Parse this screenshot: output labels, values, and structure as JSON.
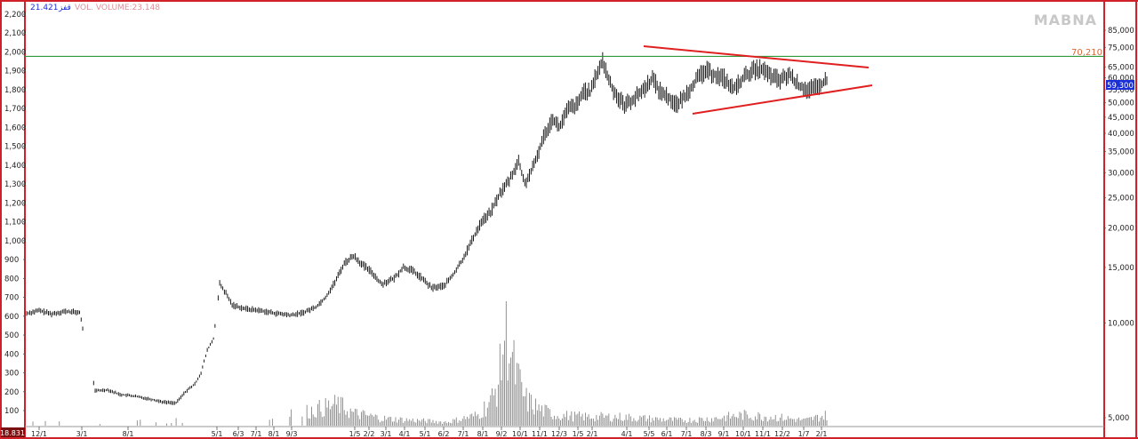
{
  "header": {
    "price_label": "21.421",
    "sym_label": "قفز",
    "volume_label": "VOL. VOLUME:23.148"
  },
  "watermark": "MABNA",
  "colors": {
    "frame": "#d0202a",
    "trendline": "#e02020",
    "resistance": "#2e9a3c",
    "price_badge": "#1a2fd6",
    "resistance_label": "#d7683a",
    "candles": "#000000",
    "volume": "#777777"
  },
  "chart_data": {
    "type": "bar",
    "title": "",
    "left_axis": {
      "ticks": [
        "100",
        "200",
        "300",
        "400",
        "500",
        "600",
        "700",
        "800",
        "900",
        "1,000",
        "1,100",
        "1,200",
        "1,300",
        "1,400",
        "1,500",
        "1,600",
        "1,700",
        "1,800",
        "1,900",
        "2,000",
        "2,100",
        "2,200"
      ],
      "bottom_badge": "18.831"
    },
    "right_axis": {
      "scale": "log",
      "ticks": [
        "85,000",
        "75,000",
        "65,000",
        "60,000",
        "55,000",
        "50,000",
        "45,000",
        "40,000",
        "35,000",
        "30,000",
        "25,000",
        "20,000",
        "15,000",
        "10,000",
        "5,000"
      ],
      "last_price_badge": "59,300"
    },
    "x_axis": {
      "ticks": [
        "12/1",
        "3/1",
        "8/1",
        "5/1",
        "6/3",
        "7/1",
        "8/1",
        "9/3",
        "1/5",
        "2/2",
        "3/1",
        "4/1",
        "5/1",
        "6/2",
        "7/1",
        "8/1",
        "9/2",
        "10/1",
        "11/1",
        "12/3",
        "1/5",
        "2/1",
        "4/1",
        "5/5",
        "6/1",
        "7/1",
        "8/3",
        "9/1",
        "10/1",
        "11/1",
        "12/2",
        "1/7",
        "2/1"
      ]
    },
    "resistance_level": {
      "value": 70210,
      "label": "70,210"
    },
    "pattern": "symmetrical triangle",
    "price_series": [
      {
        "t": 0,
        "v": 615
      },
      {
        "t": 8,
        "v": 630
      },
      {
        "t": 16,
        "v": 612
      },
      {
        "t": 24,
        "v": 625
      },
      {
        "t": 34,
        "v": 620
      },
      {
        "t": 44,
        "v": 205
      },
      {
        "t": 52,
        "v": 210
      },
      {
        "t": 60,
        "v": 185
      },
      {
        "t": 68,
        "v": 178
      },
      {
        "t": 80,
        "v": 160
      },
      {
        "t": 88,
        "v": 145
      },
      {
        "t": 96,
        "v": 140
      },
      {
        "t": 102,
        "v": 200
      },
      {
        "t": 108,
        "v": 240
      },
      {
        "t": 112,
        "v": 300
      },
      {
        "t": 116,
        "v": 420
      },
      {
        "t": 120,
        "v": 480
      },
      {
        "t": 124,
        "v": 770
      },
      {
        "t": 128,
        "v": 720
      },
      {
        "t": 132,
        "v": 660
      },
      {
        "t": 140,
        "v": 640
      },
      {
        "t": 150,
        "v": 630
      },
      {
        "t": 160,
        "v": 615
      },
      {
        "t": 170,
        "v": 605
      },
      {
        "t": 178,
        "v": 620
      },
      {
        "t": 186,
        "v": 650
      },
      {
        "t": 192,
        "v": 700
      },
      {
        "t": 198,
        "v": 780
      },
      {
        "t": 204,
        "v": 880
      },
      {
        "t": 210,
        "v": 920
      },
      {
        "t": 216,
        "v": 870
      },
      {
        "t": 222,
        "v": 830
      },
      {
        "t": 228,
        "v": 770
      },
      {
        "t": 236,
        "v": 800
      },
      {
        "t": 242,
        "v": 860
      },
      {
        "t": 248,
        "v": 840
      },
      {
        "t": 254,
        "v": 800
      },
      {
        "t": 260,
        "v": 750
      },
      {
        "t": 268,
        "v": 760
      },
      {
        "t": 274,
        "v": 820
      },
      {
        "t": 280,
        "v": 900
      },
      {
        "t": 286,
        "v": 1000
      },
      {
        "t": 292,
        "v": 1100
      },
      {
        "t": 298,
        "v": 1150
      },
      {
        "t": 304,
        "v": 1250
      },
      {
        "t": 310,
        "v": 1320
      },
      {
        "t": 316,
        "v": 1420
      },
      {
        "t": 320,
        "v": 1300
      },
      {
        "t": 326,
        "v": 1400
      },
      {
        "t": 332,
        "v": 1550
      },
      {
        "t": 338,
        "v": 1650
      },
      {
        "t": 342,
        "v": 1600
      },
      {
        "t": 348,
        "v": 1700
      },
      {
        "t": 354,
        "v": 1720
      },
      {
        "t": 358,
        "v": 1800
      },
      {
        "t": 362,
        "v": 1780
      },
      {
        "t": 366,
        "v": 1880
      },
      {
        "t": 370,
        "v": 1950
      },
      {
        "t": 374,
        "v": 1850
      },
      {
        "t": 378,
        "v": 1780
      },
      {
        "t": 384,
        "v": 1720
      },
      {
        "t": 390,
        "v": 1750
      },
      {
        "t": 396,
        "v": 1800
      },
      {
        "t": 402,
        "v": 1860
      },
      {
        "t": 406,
        "v": 1800
      },
      {
        "t": 412,
        "v": 1760
      },
      {
        "t": 418,
        "v": 1720
      },
      {
        "t": 424,
        "v": 1780
      },
      {
        "t": 430,
        "v": 1850
      },
      {
        "t": 436,
        "v": 1900
      },
      {
        "t": 442,
        "v": 1880
      },
      {
        "t": 448,
        "v": 1860
      },
      {
        "t": 454,
        "v": 1800
      },
      {
        "t": 460,
        "v": 1860
      },
      {
        "t": 466,
        "v": 1900
      },
      {
        "t": 472,
        "v": 1910
      },
      {
        "t": 478,
        "v": 1870
      },
      {
        "t": 484,
        "v": 1850
      },
      {
        "t": 490,
        "v": 1880
      },
      {
        "t": 496,
        "v": 1820
      },
      {
        "t": 502,
        "v": 1800
      },
      {
        "t": 508,
        "v": 1810
      },
      {
        "t": 514,
        "v": 1850
      }
    ],
    "volume_series": [
      {
        "t": 10,
        "v": 2
      },
      {
        "t": 60,
        "v": 2
      },
      {
        "t": 100,
        "v": 3
      },
      {
        "t": 150,
        "v": 2
      },
      {
        "t": 200,
        "v": 12
      },
      {
        "t": 210,
        "v": 7
      },
      {
        "t": 230,
        "v": 4
      },
      {
        "t": 250,
        "v": 3
      },
      {
        "t": 270,
        "v": 2
      },
      {
        "t": 290,
        "v": 6
      },
      {
        "t": 300,
        "v": 16
      },
      {
        "t": 304,
        "v": 30
      },
      {
        "t": 308,
        "v": 60
      },
      {
        "t": 312,
        "v": 35
      },
      {
        "t": 316,
        "v": 25
      },
      {
        "t": 320,
        "v": 15
      },
      {
        "t": 330,
        "v": 9
      },
      {
        "t": 340,
        "v": 6
      },
      {
        "t": 360,
        "v": 5
      },
      {
        "t": 380,
        "v": 5
      },
      {
        "t": 400,
        "v": 4
      },
      {
        "t": 420,
        "v": 3
      },
      {
        "t": 440,
        "v": 4
      },
      {
        "t": 460,
        "v": 6
      },
      {
        "t": 480,
        "v": 5
      },
      {
        "t": 500,
        "v": 3
      },
      {
        "t": 514,
        "v": 6
      }
    ]
  }
}
